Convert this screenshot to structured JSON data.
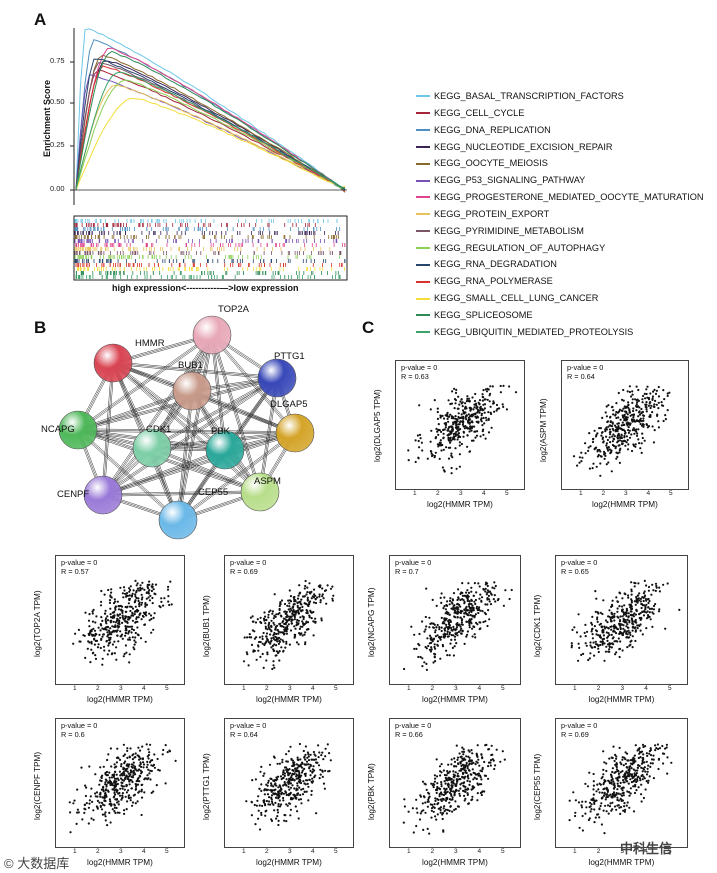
{
  "panels": {
    "a": "A",
    "b": "B",
    "c": "C"
  },
  "gsea": {
    "ylabel": "Enrichment Score",
    "yticks": [
      "0.75",
      "0.50",
      "0.25",
      "0.00"
    ],
    "xlabel": "high expression<-----------—>low expression",
    "legend": [
      {
        "label": "KEGG_BASAL_TRANSCRIPTION_FACTORS",
        "color": "#6ec6e8"
      },
      {
        "label": "KEGG_CELL_CYCLE",
        "color": "#a4243b"
      },
      {
        "label": "KEGG_DNA_REPLICATION",
        "color": "#4f8fc0"
      },
      {
        "label": "KEGG_NUCLEOTIDE_EXCISION_REPAIR",
        "color": "#3b2557"
      },
      {
        "label": "KEGG_OOCYTE_MEIOSIS",
        "color": "#8a6a2c"
      },
      {
        "label": "KEGG_P53_SIGNALING_PATHWAY",
        "color": "#7a52b5"
      },
      {
        "label": "KEGG_PROGESTERONE_MEDIATED_OOCYTE_MATURATION",
        "color": "#e0448c"
      },
      {
        "label": "KEGG_PROTEIN_EXPORT",
        "color": "#e8c25a"
      },
      {
        "label": "KEGG_PYRIMIDINE_METABOLISM",
        "color": "#7a5566"
      },
      {
        "label": "KEGG_REGULATION_OF_AUTOPHAGY",
        "color": "#8ccf55"
      },
      {
        "label": "KEGG_RNA_DEGRADATION",
        "color": "#27466e"
      },
      {
        "label": "KEGG_RNA_POLYMERASE",
        "color": "#d8322a"
      },
      {
        "label": "KEGG_SMALL_CELL_LUNG_CANCER",
        "color": "#f2dd3a"
      },
      {
        "label": "KEGG_SPLICEOSOME",
        "color": "#2e8b57"
      },
      {
        "label": "KEGG_UBIQUITIN_MEDIATED_PROTEOLYSIS",
        "color": "#3aa36a"
      }
    ]
  },
  "network": {
    "nodes": [
      {
        "id": "HMMR",
        "color": "#d94452"
      },
      {
        "id": "TOP2A",
        "color": "#e8a8b8"
      },
      {
        "id": "PTTG1",
        "color": "#3848b8"
      },
      {
        "id": "BUB1",
        "color": "#c89a8a"
      },
      {
        "id": "NCAPG",
        "color": "#4fb85a"
      },
      {
        "id": "CDK1",
        "color": "#7ecfa8"
      },
      {
        "id": "PBK",
        "color": "#2aa89a"
      },
      {
        "id": "DLGAP5",
        "color": "#d4a428"
      },
      {
        "id": "CENPF",
        "color": "#9a7ad8"
      },
      {
        "id": "ASPM",
        "color": "#b8de8a"
      },
      {
        "id": "CEP55",
        "color": "#6ab8e8"
      }
    ]
  },
  "scatter": {
    "pvalue_text": "p-value = 0",
    "xlabel": "log2(HMMR TPM)",
    "xticks": [
      "1",
      "2",
      "3",
      "4",
      "5"
    ],
    "plots": [
      {
        "ylabel": "log2(DLGAP5 TPM)",
        "r": "R = 0.63"
      },
      {
        "ylabel": "log2(ASPM TPM)",
        "r": "R = 0.64"
      },
      {
        "ylabel": "log2(TOP2A TPM)",
        "r": "R = 0.57"
      },
      {
        "ylabel": "log2(BUB1 TPM)",
        "r": "R = 0.69"
      },
      {
        "ylabel": "log2(NCAPG TPM)",
        "r": "R = 0.7"
      },
      {
        "ylabel": "log2(CDK1 TPM)",
        "r": "R = 0.65"
      },
      {
        "ylabel": "log2(CENPF TPM)",
        "r": "R = 0.6"
      },
      {
        "ylabel": "log2(PTTG1 TPM)",
        "r": "R = 0.64"
      },
      {
        "ylabel": "log2(PBK TPM)",
        "r": "R = 0.66"
      },
      {
        "ylabel": "log2(CEP55 TPM)",
        "r": "R = 0.69"
      }
    ]
  },
  "watermarks": {
    "left": "© 大数据库",
    "right": "中科生信"
  }
}
